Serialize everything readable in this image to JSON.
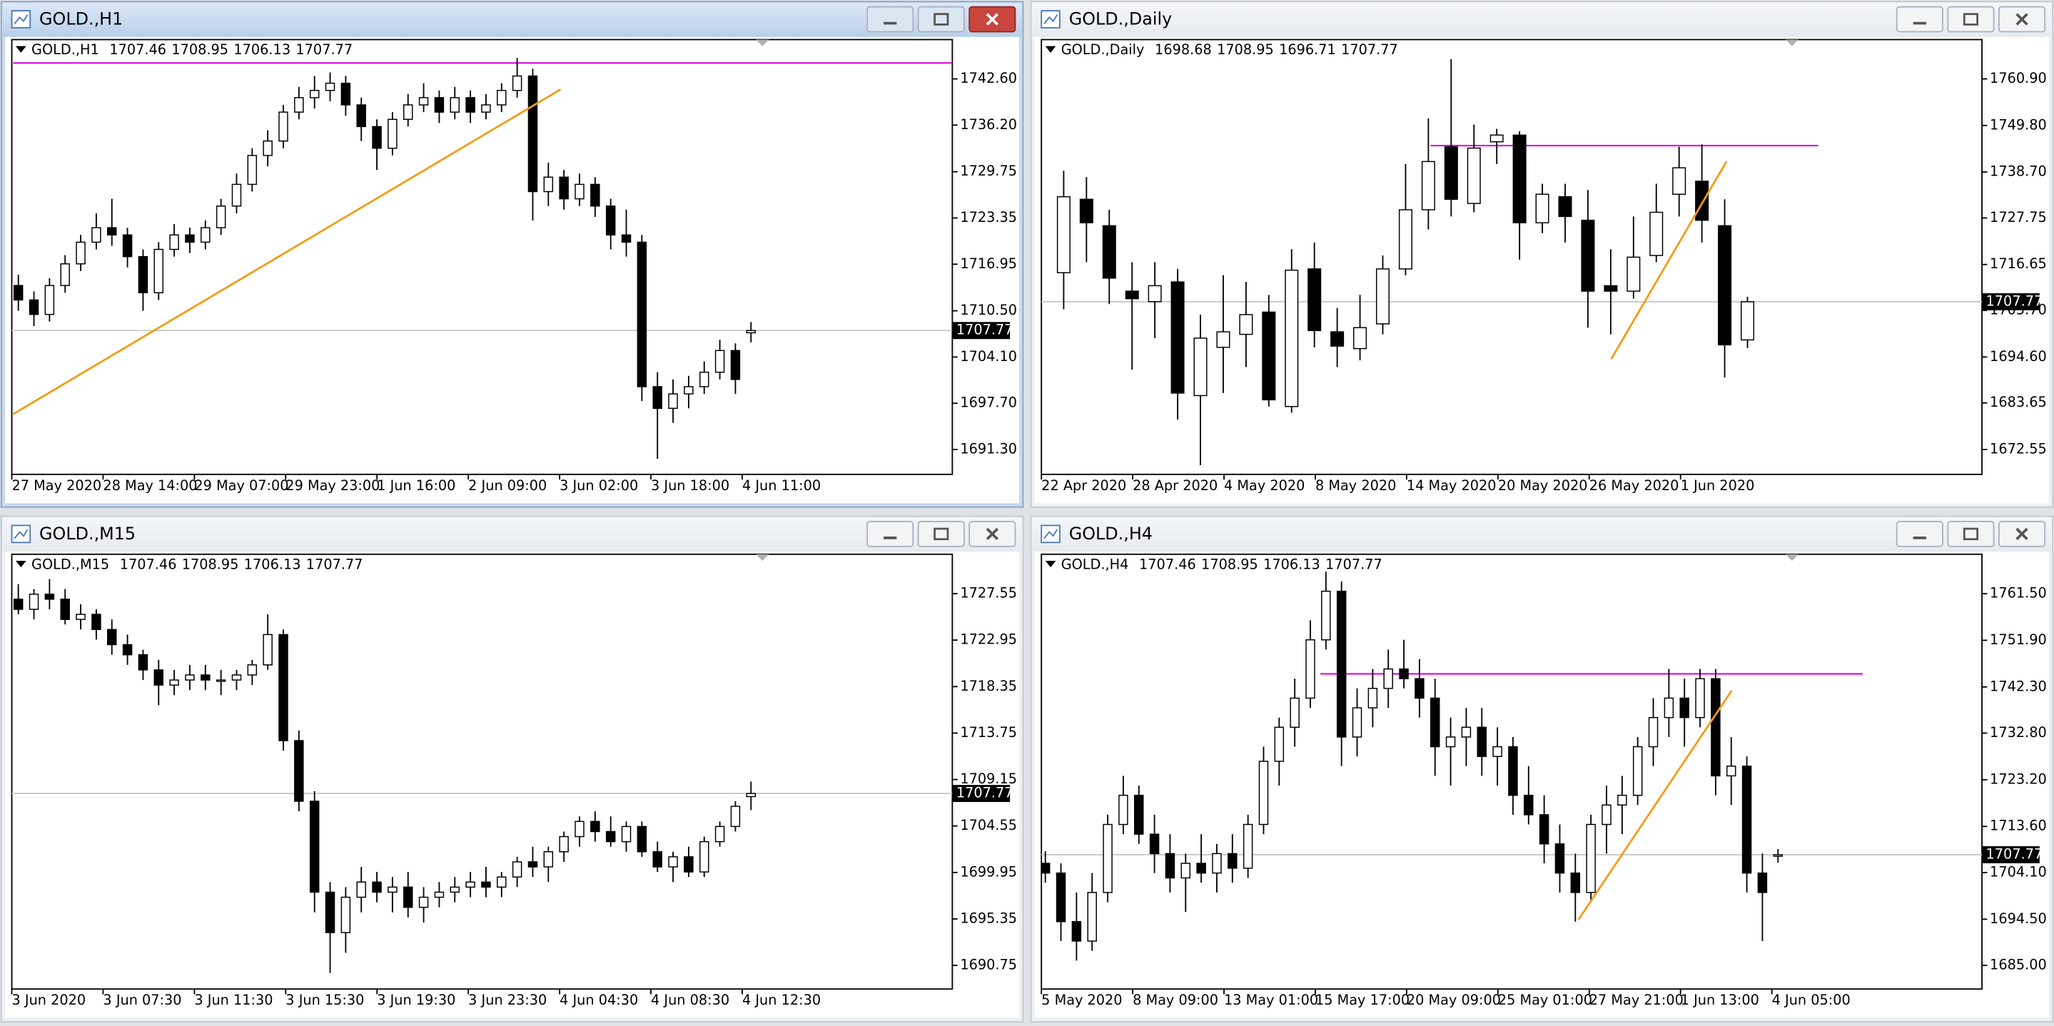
{
  "windows": [
    {
      "title": "GOLD.,H1",
      "info": {
        "symbol": "GOLD.,H1",
        "ohlc": [
          1707.46,
          1708.95,
          1706.13,
          1707.77
        ]
      },
      "ylim": [
        1687.86,
        1748.04
      ],
      "yticks": [
        {
          "value": 1742.6,
          "label": "1742.60"
        },
        {
          "value": 1736.2,
          "label": "1736.20"
        },
        1729.75,
        1723.35,
        1716.95,
        {
          "value": 1710.5,
          "label": "1710.50"
        },
        {
          "value": 1704.1,
          "label": "1704.10"
        },
        {
          "value": 1697.7,
          "label": "1697.70"
        },
        {
          "value": 1691.3,
          "label": "1691.30"
        }
      ],
      "time_labels": [
        "27 May 2020",
        "28 May 14:00",
        "29 May 07:00",
        "29 May 23:00",
        "1 Jun 16:00",
        "2 Jun 09:00",
        "3 Jun 02:00",
        "3 Jun 18:00",
        "4 Jun 11:00"
      ],
      "level": 1744.8,
      "candles": [
        [
          1714,
          1715.5,
          1710.5,
          1712
        ],
        [
          1712,
          1713.2,
          1708.4,
          1710
        ],
        [
          1710,
          1715,
          1709,
          1714
        ],
        [
          1714,
          1718.2,
          1713,
          1717
        ],
        [
          1717,
          1721,
          1716,
          1720
        ],
        [
          1720,
          1724,
          1719,
          1722
        ],
        [
          1722,
          1726,
          1719.5,
          1721
        ],
        [
          1721,
          1722,
          1716.5,
          1718
        ],
        [
          1718,
          1719,
          1710.5,
          1713
        ],
        [
          1713,
          1720,
          1712,
          1719
        ],
        [
          1719,
          1722.5,
          1718,
          1721
        ],
        [
          1721,
          1722,
          1718.5,
          1720
        ],
        [
          1720,
          1723,
          1719,
          1722
        ],
        [
          1722,
          1726,
          1721,
          1725
        ],
        [
          1725,
          1729.5,
          1724,
          1728
        ],
        [
          1728,
          1733,
          1727,
          1732
        ],
        [
          1732,
          1735.5,
          1730.5,
          1734
        ],
        [
          1734,
          1739,
          1733,
          1738
        ],
        [
          1738,
          1741.5,
          1737,
          1740
        ],
        [
          1740,
          1743,
          1738.5,
          1741
        ],
        [
          1741,
          1743.5,
          1739.5,
          1742
        ],
        [
          1742,
          1743,
          1737.5,
          1739
        ],
        [
          1739,
          1740,
          1734,
          1736
        ],
        [
          1736,
          1737,
          1730,
          1733
        ],
        [
          1733,
          1738,
          1732,
          1737
        ],
        [
          1737,
          1740.5,
          1736,
          1739
        ],
        [
          1739,
          1742,
          1738,
          1740
        ],
        [
          1740,
          1741,
          1736.5,
          1738
        ],
        [
          1738,
          1741.5,
          1737,
          1740
        ],
        [
          1740,
          1741,
          1736.5,
          1738
        ],
        [
          1738,
          1740.5,
          1737,
          1739
        ],
        [
          1739,
          1742,
          1738,
          1741
        ],
        [
          1741,
          1745.5,
          1740,
          1743
        ],
        [
          1743,
          1744,
          1723,
          1727
        ],
        [
          1727,
          1731,
          1725,
          1729
        ],
        [
          1729,
          1730,
          1724.5,
          1726
        ],
        [
          1726,
          1729.5,
          1725,
          1728
        ],
        [
          1728,
          1729,
          1723.5,
          1725
        ],
        [
          1725,
          1726,
          1719,
          1721
        ],
        [
          1721,
          1724.5,
          1718,
          1720
        ],
        [
          1720,
          1721,
          1698,
          1700
        ],
        [
          1700,
          1702,
          1690,
          1697
        ],
        [
          1697,
          1701,
          1695,
          1699
        ],
        [
          1699,
          1701.5,
          1697,
          1700
        ],
        [
          1700,
          1703.5,
          1699,
          1702
        ],
        [
          1702,
          1706.5,
          1701,
          1705
        ],
        [
          1705,
          1706,
          1699,
          1701
        ]
      ]
    },
    {
      "title": "GOLD.,Daily",
      "info": {
        "symbol": "GOLD.,Daily",
        "ohlc": [
          1698.68,
          1708.95,
          1696.71,
          1707.77
        ]
      },
      "ylim": [
        1666.62,
        1770.27
      ],
      "yticks": [
        {
          "value": 1760.9,
          "label": "1760.90"
        },
        {
          "value": 1749.8,
          "label": "1749.80"
        },
        {
          "value": 1738.7,
          "label": "1738.70"
        },
        1727.75,
        1716.65,
        {
          "value": 1705.7,
          "label": "1705.70"
        },
        {
          "value": 1694.6,
          "label": "1694.60"
        },
        1683.65,
        1672.55
      ],
      "time_labels": [
        "22 Apr 2020",
        "28 Apr 2020",
        "4 May 2020",
        "8 May 2020",
        "14 May 2020",
        "20 May 2020",
        "26 May 2020",
        "1 Jun 2020"
      ],
      "level": 1745,
      "candles": [
        [
          1714.7,
          1739,
          1706,
          1732.8
        ],
        [
          1732.2,
          1737.5,
          1717.2,
          1726.6
        ],
        [
          1725.9,
          1729.7,
          1707.2,
          1713.4
        ],
        [
          1710.3,
          1717.2,
          1691.6,
          1708.5
        ],
        [
          1707.8,
          1717.2,
          1699.1,
          1711.6
        ],
        [
          1712.5,
          1715.6,
          1679.7,
          1686
        ],
        [
          1685.4,
          1704.7,
          1668.8,
          1699.1
        ],
        [
          1696.9,
          1714.1,
          1686,
          1700.6
        ],
        [
          1700,
          1712.5,
          1692.2,
          1704.7
        ],
        [
          1705.3,
          1709.4,
          1682.8,
          1684.4
        ],
        [
          1682.8,
          1720.3,
          1681.3,
          1715.3
        ],
        [
          1715.6,
          1721.9,
          1696.9,
          1700.9
        ],
        [
          1700.6,
          1706.3,
          1692.2,
          1697.2
        ],
        [
          1696.6,
          1709.4,
          1693.8,
          1701.6
        ],
        [
          1702.5,
          1718.8,
          1700,
          1715.6
        ],
        [
          1715.6,
          1740.6,
          1714.1,
          1729.7
        ],
        [
          1729.7,
          1751.5,
          1725,
          1741.2
        ],
        [
          1744.7,
          1765.6,
          1728.1,
          1732.2
        ],
        [
          1731.2,
          1750,
          1729.1,
          1744.4
        ],
        [
          1745.9,
          1749,
          1740.6,
          1747.5
        ],
        [
          1747.5,
          1748.4,
          1717.8,
          1726.6
        ],
        [
          1726.6,
          1735.9,
          1724.1,
          1733.4
        ],
        [
          1732.8,
          1735.9,
          1721.9,
          1728.1
        ],
        [
          1727.2,
          1734.4,
          1701.6,
          1710.3
        ],
        [
          1711.6,
          1720.3,
          1700,
          1710.3
        ],
        [
          1710.3,
          1728.1,
          1708.5,
          1718.4
        ],
        [
          1718.8,
          1735.9,
          1717.2,
          1729.1
        ],
        [
          1733.4,
          1744.7,
          1728.1,
          1739.7
        ],
        [
          1736.5,
          1745.3,
          1721.9,
          1727.2
        ],
        [
          1725.9,
          1732.2,
          1689.7,
          1697.5
        ]
      ]
    },
    {
      "title": "GOLD.,M15",
      "info": {
        "symbol": "GOLD.,M15",
        "ohlc": [
          1707.46,
          1708.95,
          1706.13,
          1707.77
        ]
      },
      "ylim": [
        1688.41,
        1731.45
      ],
      "yticks": [
        1727.55,
        1722.95,
        1718.35,
        1713.75,
        1709.15,
        1704.55,
        1699.95,
        1695.35,
        1690.75
      ],
      "time_labels": [
        "3 Jun 2020",
        "3 Jun 07:30",
        "3 Jun 11:30",
        "3 Jun 15:30",
        "3 Jun 19:30",
        "3 Jun 23:30",
        "4 Jun 04:30",
        "4 Jun 08:30",
        "4 Jun 12:30"
      ],
      "candles": [
        [
          1727,
          1728.5,
          1725.5,
          1726
        ],
        [
          1726,
          1728,
          1725,
          1727.5
        ],
        [
          1727.5,
          1729,
          1726,
          1727
        ],
        [
          1727,
          1728,
          1724.5,
          1725
        ],
        [
          1725,
          1726.5,
          1724,
          1725.5
        ],
        [
          1725.5,
          1726,
          1723,
          1724
        ],
        [
          1724,
          1725,
          1721.5,
          1722.5
        ],
        [
          1722.5,
          1723.5,
          1720.5,
          1721.5
        ],
        [
          1721.5,
          1722,
          1719,
          1720
        ],
        [
          1720,
          1721,
          1716.5,
          1718.5
        ],
        [
          1718.5,
          1720,
          1717.5,
          1719
        ],
        [
          1719,
          1720.5,
          1718,
          1719.5
        ],
        [
          1719.5,
          1720.5,
          1718,
          1719
        ],
        [
          1719,
          1720,
          1717.5,
          1719
        ],
        [
          1719,
          1720,
          1718,
          1719.5
        ],
        [
          1719.5,
          1721,
          1718.5,
          1720.5
        ],
        [
          1720.5,
          1725.5,
          1720,
          1723.5
        ],
        [
          1723.5,
          1724,
          1712,
          1713
        ],
        [
          1713,
          1714,
          1706,
          1707
        ],
        [
          1707,
          1708,
          1696,
          1698
        ],
        [
          1698,
          1699,
          1690,
          1694
        ],
        [
          1694,
          1698.5,
          1692,
          1697.5
        ],
        [
          1697.5,
          1700.5,
          1696,
          1699
        ],
        [
          1699,
          1700,
          1697,
          1698
        ],
        [
          1698,
          1699.5,
          1696,
          1698.5
        ],
        [
          1698.5,
          1700,
          1695.5,
          1696.5
        ],
        [
          1696.5,
          1698.5,
          1695,
          1697.5
        ],
        [
          1697.5,
          1699,
          1696.5,
          1698
        ],
        [
          1698,
          1699.5,
          1697,
          1698.5
        ],
        [
          1698.5,
          1700,
          1697.5,
          1699
        ],
        [
          1699,
          1700.5,
          1697.5,
          1698.5
        ],
        [
          1698.5,
          1700,
          1697.5,
          1699.5
        ],
        [
          1699.5,
          1701.5,
          1698.5,
          1701
        ],
        [
          1701,
          1702.5,
          1699.5,
          1700.5
        ],
        [
          1700.5,
          1702.5,
          1699,
          1702
        ],
        [
          1702,
          1704,
          1701,
          1703.5
        ],
        [
          1703.5,
          1705.5,
          1702.5,
          1705
        ],
        [
          1705,
          1706,
          1703,
          1704
        ],
        [
          1704,
          1705.5,
          1702.5,
          1703
        ],
        [
          1703,
          1705,
          1702,
          1704.5
        ],
        [
          1704.5,
          1705,
          1701.5,
          1702
        ],
        [
          1702,
          1703,
          1700,
          1700.5
        ],
        [
          1700.5,
          1702,
          1699,
          1701.5
        ],
        [
          1701.5,
          1702.5,
          1699.5,
          1700
        ],
        [
          1700,
          1703.5,
          1699.5,
          1703
        ],
        [
          1703,
          1705,
          1702.5,
          1704.5
        ],
        [
          1704.5,
          1707,
          1704,
          1706.5
        ]
      ]
    },
    {
      "title": "GOLD.,H4",
      "info": {
        "symbol": "GOLD.,H4",
        "ohlc": [
          1707.46,
          1708.95,
          1706.13,
          1707.77
        ]
      },
      "ylim": [
        1680.13,
        1769.61
      ],
      "yticks": [
        {
          "value": 1761.5,
          "label": "1761.50"
        },
        {
          "value": 1751.9,
          "label": "1751.90"
        },
        {
          "value": 1742.3,
          "label": "1742.30"
        },
        {
          "value": 1732.8,
          "label": "1732.80"
        },
        {
          "value": 1723.2,
          "label": "1723.20"
        },
        {
          "value": 1713.6,
          "label": "1713.60"
        },
        {
          "value": 1704.1,
          "label": "1704.10"
        },
        {
          "value": 1694.5,
          "label": "1694.50"
        },
        {
          "value": 1685,
          "label": "1685.00"
        }
      ],
      "time_labels": [
        "5 May 2020",
        "8 May 09:00",
        "13 May 01:00",
        "15 May 17:00",
        "20 May 09:00",
        "25 May 01:00",
        "27 May 21:00",
        "1 Jun 13:00",
        "4 Jun 05:00"
      ],
      "level": 1745,
      "candles": [
        [
          1706,
          1708.5,
          1702,
          1704
        ],
        [
          1704,
          1706,
          1690,
          1694
        ],
        [
          1694,
          1700,
          1686,
          1690
        ],
        [
          1690,
          1704,
          1688,
          1700
        ],
        [
          1700,
          1716,
          1698,
          1714
        ],
        [
          1714,
          1724,
          1712,
          1720
        ],
        [
          1720,
          1722,
          1710,
          1712
        ],
        [
          1712,
          1716,
          1704,
          1708
        ],
        [
          1708,
          1712,
          1700,
          1703
        ],
        [
          1703,
          1708,
          1696,
          1706
        ],
        [
          1706,
          1712,
          1702,
          1704
        ],
        [
          1704,
          1710,
          1700,
          1708
        ],
        [
          1708,
          1712,
          1702,
          1705
        ],
        [
          1705,
          1716,
          1703,
          1714
        ],
        [
          1714,
          1730,
          1712,
          1727
        ],
        [
          1727,
          1736,
          1722,
          1734
        ],
        [
          1734,
          1744,
          1730,
          1740
        ],
        [
          1740,
          1756,
          1738,
          1752
        ],
        [
          1752,
          1766,
          1750,
          1762
        ],
        [
          1762,
          1764,
          1726,
          1732
        ],
        [
          1732,
          1742,
          1728,
          1738
        ],
        [
          1738,
          1746,
          1734,
          1742
        ],
        [
          1742,
          1750,
          1738,
          1746
        ],
        [
          1746,
          1752,
          1742,
          1744
        ],
        [
          1744,
          1748,
          1736,
          1740
        ],
        [
          1740,
          1744,
          1724,
          1730
        ],
        [
          1730,
          1736,
          1722,
          1732
        ],
        [
          1732,
          1738,
          1726,
          1734
        ],
        [
          1734,
          1738,
          1724,
          1728
        ],
        [
          1728,
          1734,
          1722,
          1730
        ],
        [
          1730,
          1732,
          1716,
          1720
        ],
        [
          1720,
          1726,
          1714,
          1716
        ],
        [
          1716,
          1720,
          1706,
          1710
        ],
        [
          1710,
          1714,
          1700,
          1704
        ],
        [
          1704,
          1708,
          1694,
          1700
        ],
        [
          1700,
          1716,
          1698,
          1714
        ],
        [
          1714,
          1722,
          1708,
          1718
        ],
        [
          1718,
          1724,
          1712,
          1720
        ],
        [
          1720,
          1732,
          1718,
          1730
        ],
        [
          1730,
          1740,
          1726,
          1736
        ],
        [
          1736,
          1746,
          1732,
          1740
        ],
        [
          1740,
          1744,
          1730,
          1736
        ],
        [
          1736,
          1746,
          1734,
          1744
        ],
        [
          1744,
          1746,
          1720,
          1724
        ],
        [
          1724,
          1732,
          1718,
          1726
        ],
        [
          1726,
          1728,
          1700,
          1704
        ],
        [
          1704,
          1708,
          1690,
          1700
        ]
      ]
    }
  ]
}
